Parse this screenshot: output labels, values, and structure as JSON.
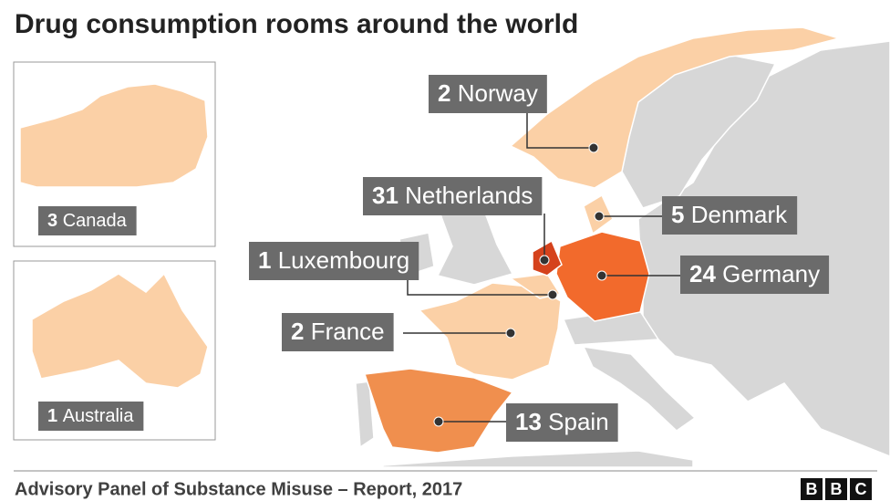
{
  "title": "Drug consumption rooms around the world",
  "countries": [
    {
      "count": 2,
      "name": "Norway"
    },
    {
      "count": 31,
      "name": "Netherlands"
    },
    {
      "count": 5,
      "name": "Denmark"
    },
    {
      "count": 1,
      "name": "Luxembourg"
    },
    {
      "count": 24,
      "name": "Germany"
    },
    {
      "count": 2,
      "name": "France"
    },
    {
      "count": 13,
      "name": "Spain"
    }
  ],
  "insets": [
    {
      "count": 3,
      "name": "Canada"
    },
    {
      "count": 1,
      "name": "Australia"
    }
  ],
  "source": "Advisory Panel of Substance Misuse – Report, 2017",
  "logo": [
    "B",
    "B",
    "C"
  ]
}
